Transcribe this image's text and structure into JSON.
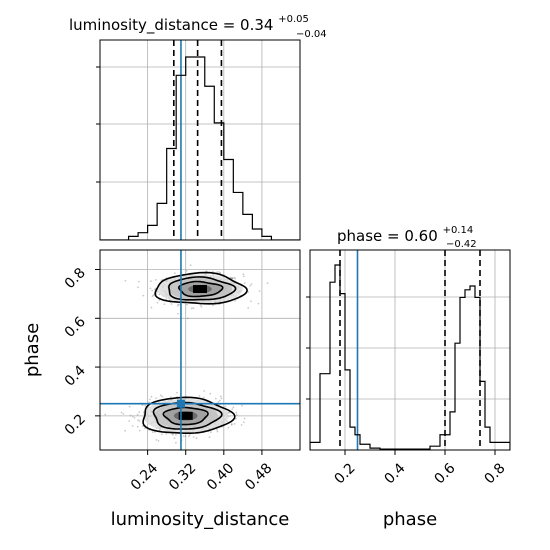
{
  "chart_data": [
    {
      "type": "histogram",
      "panel": "marginal-luminosity-distance",
      "title": {
        "main": "luminosity_distance = 0.34",
        "plus": "+0.05",
        "minus": "−0.04"
      },
      "xlim": [
        0.14,
        0.56
      ],
      "bin_edges": [
        0.14,
        0.16,
        0.18,
        0.2,
        0.22,
        0.24,
        0.26,
        0.28,
        0.3,
        0.32,
        0.34,
        0.36,
        0.38,
        0.4,
        0.42,
        0.44,
        0.46,
        0.48,
        0.5,
        0.52,
        0.54,
        0.56
      ],
      "counts": [
        0,
        0,
        0,
        0.02,
        0.04,
        0.08,
        0.2,
        0.5,
        0.9,
        1.0,
        1.0,
        0.84,
        0.64,
        0.44,
        0.26,
        0.14,
        0.06,
        0.02,
        0,
        0,
        0
      ],
      "quantiles": [
        0.295,
        0.345,
        0.395
      ],
      "truth": 0.31
    },
    {
      "type": "scatter",
      "panel": "joint-luminosity-distance-phase",
      "xlabel": "luminosity_distance",
      "ylabel": "phase",
      "xlim": [
        0.14,
        0.56
      ],
      "ylim": [
        0.06,
        0.88
      ],
      "xticks": [
        "0.24",
        "0.32",
        "0.40",
        "0.48"
      ],
      "yticks": [
        "0.2",
        "0.4",
        "0.6",
        "0.8"
      ],
      "clusters": [
        {
          "center": [
            0.35,
            0.72
          ],
          "sd": [
            0.045,
            0.03
          ]
        },
        {
          "center": [
            0.32,
            0.2
          ],
          "sd": [
            0.045,
            0.035
          ]
        }
      ],
      "truth": [
        0.31,
        0.25
      ]
    },
    {
      "type": "histogram",
      "panel": "marginal-phase",
      "title": {
        "main": "phase = 0.60",
        "plus": "+0.14",
        "minus": "−0.42"
      },
      "xlabel": "phase",
      "xlim": [
        0.06,
        0.86
      ],
      "xticks": [
        "0.2",
        "0.4",
        "0.6",
        "0.8"
      ],
      "bin_edges": [
        0.06,
        0.1,
        0.14,
        0.16,
        0.18,
        0.2,
        0.22,
        0.24,
        0.26,
        0.3,
        0.34,
        0.4,
        0.46,
        0.54,
        0.58,
        0.62,
        0.64,
        0.66,
        0.68,
        0.7,
        0.72,
        0.74,
        0.76,
        0.78,
        0.82,
        0.86
      ],
      "counts": [
        0.04,
        0.4,
        0.88,
        0.97,
        0.82,
        0.42,
        0.12,
        0.08,
        0.03,
        0.01,
        0.005,
        0.005,
        0.005,
        0.02,
        0.08,
        0.2,
        0.56,
        0.8,
        0.84,
        0.86,
        0.8,
        0.36,
        0.12,
        0.04,
        0.04
      ],
      "quantiles": [
        0.18,
        0.6,
        0.74
      ],
      "truth": 0.25
    }
  ]
}
